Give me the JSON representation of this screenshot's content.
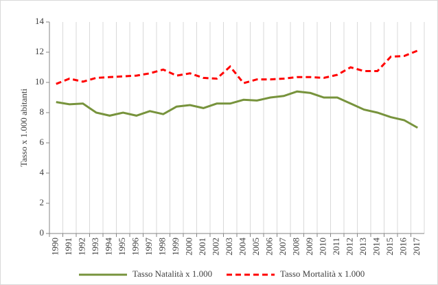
{
  "chart_data": {
    "type": "line",
    "y_label": "Tasso x 1.000 abitanti",
    "categories": [
      "1990",
      "1991",
      "1992",
      "1993",
      "1994",
      "1995",
      "1996",
      "1997",
      "1998",
      "1999",
      "2000",
      "2001",
      "2002",
      "2003",
      "2004",
      "2005",
      "2006",
      "2007",
      "2008",
      "2009",
      "2010",
      "2011",
      "2012",
      "2013",
      "2014",
      "2015",
      "2016",
      "2017"
    ],
    "series": [
      {
        "name": "Tasso Natalità x 1.000",
        "color": "#77933c",
        "dash": false,
        "values": [
          8.7,
          8.55,
          8.6,
          8.0,
          7.8,
          8.0,
          7.8,
          8.1,
          7.9,
          8.4,
          8.5,
          8.3,
          8.6,
          8.6,
          8.85,
          8.8,
          9.0,
          9.1,
          9.4,
          9.3,
          9.0,
          9.0,
          8.6,
          8.2,
          8.0,
          7.7,
          7.5,
          7.0
        ]
      },
      {
        "name": "Tasso Mortalità x 1.000",
        "color": "#ff0000",
        "dash": true,
        "values": [
          9.9,
          10.25,
          10.05,
          10.3,
          10.35,
          10.4,
          10.45,
          10.6,
          10.85,
          10.45,
          10.6,
          10.3,
          10.25,
          11.05,
          9.95,
          10.2,
          10.2,
          10.25,
          10.35,
          10.35,
          10.3,
          10.5,
          11.0,
          10.75,
          10.75,
          11.7,
          11.75,
          12.1
        ]
      }
    ],
    "ylim": [
      0,
      14
    ],
    "yticks": [
      0,
      2,
      4,
      6,
      8,
      10,
      12,
      14
    ],
    "grid": "x",
    "legend": "bottom"
  }
}
